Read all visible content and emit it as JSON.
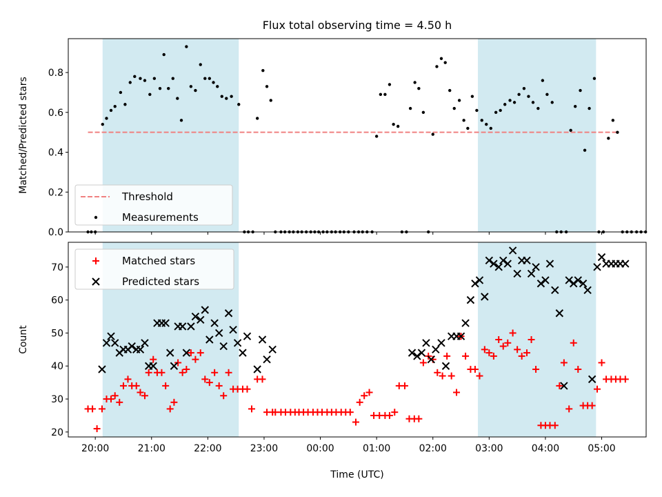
{
  "chart_data": [
    {
      "type": "scatter",
      "title": "Flux total observing time = 4.50 h",
      "ylabel": "Matched/Predicted stars",
      "xlabel": "",
      "ylim": [
        0,
        0.97
      ],
      "yticks": [
        0.0,
        0.2,
        0.4,
        0.6,
        0.8
      ],
      "ytick_labels": [
        "0.0",
        "0.2",
        "0.4",
        "0.6",
        "0.8"
      ],
      "xlim": [
        19.52,
        29.79
      ],
      "highlight_spans": [
        [
          20.13,
          22.55
        ],
        [
          26.8,
          28.9
        ]
      ],
      "highlight_color": "#add8e6",
      "legend": {
        "placement": "lower-left",
        "entries": [
          "Threshold",
          "Measurements"
        ]
      },
      "series": [
        {
          "name": "Threshold",
          "style": "dashed-line",
          "color": "#f08080",
          "x": [
            19.87,
            29.27
          ],
          "y": [
            0.5,
            0.5
          ]
        },
        {
          "name": "Measurements",
          "style": "dot",
          "color": "#000000",
          "x": [
            19.87,
            19.93,
            20.0,
            20.13,
            20.2,
            20.28,
            20.35,
            20.45,
            20.53,
            20.62,
            20.7,
            20.8,
            20.88,
            20.97,
            21.05,
            21.15,
            21.22,
            21.3,
            21.38,
            21.46,
            21.53,
            21.62,
            21.7,
            21.78,
            21.87,
            21.95,
            22.03,
            22.1,
            22.17,
            22.25,
            22.33,
            22.42,
            22.55,
            22.65,
            22.72,
            22.8,
            22.88,
            22.98,
            23.05,
            23.12,
            23.2,
            23.3,
            23.37,
            23.45,
            23.52,
            23.6,
            23.67,
            23.75,
            23.83,
            23.9,
            23.97,
            24.05,
            24.12,
            24.2,
            24.27,
            24.35,
            24.42,
            24.5,
            24.6,
            24.68,
            24.75,
            24.83,
            24.92,
            25.0,
            25.07,
            25.15,
            25.23,
            25.3,
            25.38,
            25.45,
            25.53,
            25.6,
            25.68,
            25.75,
            25.83,
            25.92,
            26.0,
            26.07,
            26.15,
            26.22,
            26.3,
            26.38,
            26.47,
            26.55,
            26.62,
            26.7,
            26.78,
            26.87,
            26.95,
            27.03,
            27.12,
            27.2,
            27.28,
            27.37,
            27.45,
            27.53,
            27.62,
            27.7,
            27.78,
            27.87,
            27.95,
            28.03,
            28.12,
            28.2,
            28.28,
            28.37,
            28.45,
            28.53,
            28.62,
            28.7,
            28.78,
            28.87,
            28.95,
            29.03,
            29.12,
            29.2,
            29.28,
            29.37,
            29.45,
            29.53,
            29.62,
            29.7,
            29.78
          ],
          "y": [
            0.0,
            0.0,
            0.0,
            0.54,
            0.57,
            0.61,
            0.63,
            0.7,
            0.64,
            0.75,
            0.78,
            0.77,
            0.76,
            0.69,
            0.77,
            0.72,
            0.89,
            0.72,
            0.77,
            0.67,
            0.56,
            0.93,
            0.73,
            0.71,
            0.84,
            0.77,
            0.77,
            0.75,
            0.73,
            0.68,
            0.67,
            0.68,
            0.64,
            0.0,
            0.0,
            0.0,
            0.57,
            0.81,
            0.73,
            0.66,
            0.0,
            0.0,
            0.0,
            0.0,
            0.0,
            0.0,
            0.0,
            0.0,
            0.0,
            0.0,
            0.0,
            0.0,
            0.0,
            0.0,
            0.0,
            0.0,
            0.0,
            0.0,
            0.0,
            0.0,
            0.0,
            0.0,
            0.0,
            0.48,
            0.69,
            0.69,
            0.74,
            0.54,
            0.53,
            0.0,
            0.0,
            0.62,
            0.75,
            0.72,
            0.6,
            0.0,
            0.49,
            0.83,
            0.87,
            0.85,
            0.71,
            0.62,
            0.66,
            0.56,
            0.52,
            0.68,
            0.61,
            0.56,
            0.54,
            0.52,
            0.6,
            0.61,
            0.64,
            0.66,
            0.65,
            0.69,
            0.72,
            0.68,
            0.65,
            0.62,
            0.76,
            0.69,
            0.65,
            0.0,
            0.0,
            0.0,
            0.51,
            0.63,
            0.71,
            0.41,
            0.62,
            0.77,
            0.0,
            0.0,
            0.47,
            0.56,
            0.5,
            0.0,
            0.0,
            0.0,
            0.0,
            0.0,
            0.0
          ]
        }
      ]
    },
    {
      "type": "scatter",
      "title": "",
      "ylabel": "Count",
      "xlabel": "Time (UTC)",
      "ylim": [
        18.5,
        77.5
      ],
      "yticks": [
        20,
        30,
        40,
        50,
        60,
        70
      ],
      "ytick_labels": [
        "20",
        "30",
        "40",
        "50",
        "60",
        "70"
      ],
      "xlim": [
        19.52,
        29.79
      ],
      "xticks": [
        20,
        21,
        22,
        23,
        24,
        25,
        26,
        27,
        28,
        29
      ],
      "xtick_labels": [
        "20:00",
        "21:00",
        "22:00",
        "23:00",
        "00:00",
        "01:00",
        "02:00",
        "03:00",
        "04:00",
        "05:00"
      ],
      "highlight_spans": [
        [
          20.13,
          22.55
        ],
        [
          26.8,
          28.9
        ]
      ],
      "highlight_color": "#add8e6",
      "legend": {
        "placement": "top-left",
        "entries": [
          "Matched stars",
          "Predicted stars"
        ]
      },
      "series": [
        {
          "name": "Matched stars",
          "style": "plus",
          "color": "#ff0000",
          "x": [
            19.87,
            19.95,
            20.03,
            20.12,
            20.2,
            20.28,
            20.35,
            20.43,
            20.5,
            20.58,
            20.65,
            20.73,
            20.8,
            20.88,
            20.95,
            21.03,
            21.1,
            21.18,
            21.25,
            21.33,
            21.4,
            21.47,
            21.55,
            21.62,
            21.7,
            21.78,
            21.87,
            21.95,
            22.03,
            22.12,
            22.2,
            22.28,
            22.37,
            22.45,
            22.53,
            22.62,
            22.7,
            22.78,
            22.88,
            22.97,
            23.05,
            23.15,
            23.2,
            23.3,
            23.38,
            23.47,
            23.55,
            23.62,
            23.7,
            23.78,
            23.87,
            23.95,
            24.03,
            24.12,
            24.2,
            24.28,
            24.37,
            24.45,
            24.53,
            24.63,
            24.7,
            24.78,
            24.87,
            24.95,
            25.05,
            25.15,
            25.23,
            25.32,
            25.4,
            25.5,
            25.58,
            25.67,
            25.75,
            25.83,
            25.92,
            26.0,
            26.08,
            26.17,
            26.25,
            26.33,
            26.42,
            26.5,
            26.58,
            26.67,
            26.75,
            26.83,
            26.92,
            27.0,
            27.08,
            27.17,
            27.25,
            27.33,
            27.42,
            27.5,
            27.58,
            27.67,
            27.75,
            27.83,
            27.92,
            28.0,
            28.08,
            28.17,
            28.25,
            28.33,
            28.42,
            28.5,
            28.58,
            28.67,
            28.75,
            28.83,
            28.92,
            29.0,
            29.08,
            29.17,
            29.25,
            29.33,
            29.42
          ],
          "y": [
            27,
            27,
            21,
            27,
            30,
            30,
            31,
            29,
            34,
            36,
            34,
            34,
            32,
            31,
            38,
            42,
            38,
            38,
            34,
            27,
            29,
            41,
            38,
            39,
            44,
            42,
            44,
            36,
            35,
            38,
            34,
            31,
            38,
            33,
            33,
            33,
            33,
            27,
            36,
            36,
            26,
            26,
            26,
            26,
            26,
            26,
            26,
            26,
            26,
            26,
            26,
            26,
            26,
            26,
            26,
            26,
            26,
            26,
            26,
            23,
            29,
            31,
            32,
            25,
            25,
            25,
            25,
            26,
            34,
            34,
            24,
            24,
            24,
            41,
            43,
            42,
            38,
            37,
            43,
            37,
            32,
            49,
            43,
            39,
            39,
            37,
            45,
            44,
            43,
            48,
            46,
            47,
            50,
            45,
            43,
            44,
            48,
            39,
            22,
            22,
            22,
            22,
            34,
            41,
            27,
            47,
            39,
            28,
            28,
            28,
            33,
            41,
            36,
            36,
            36,
            36,
            36
          ]
        },
        {
          "name": "Predicted stars",
          "style": "x",
          "color": "#000000",
          "x": [
            20.12,
            20.2,
            20.28,
            20.35,
            20.43,
            20.5,
            20.58,
            20.65,
            20.73,
            20.8,
            20.88,
            20.95,
            21.03,
            21.1,
            21.18,
            21.25,
            21.33,
            21.4,
            21.47,
            21.55,
            21.62,
            21.7,
            21.78,
            21.87,
            21.95,
            22.03,
            22.12,
            22.2,
            22.28,
            22.37,
            22.45,
            22.53,
            22.62,
            22.7,
            22.88,
            22.97,
            23.05,
            23.15,
            25.63,
            25.72,
            25.8,
            25.88,
            25.97,
            26.05,
            26.15,
            26.23,
            26.33,
            26.42,
            26.5,
            26.58,
            26.67,
            26.75,
            26.83,
            26.92,
            27.0,
            27.08,
            27.17,
            27.25,
            27.33,
            27.42,
            27.5,
            27.58,
            27.67,
            27.75,
            27.83,
            27.92,
            28.0,
            28.08,
            28.17,
            28.25,
            28.33,
            28.42,
            28.5,
            28.58,
            28.67,
            28.75,
            28.83,
            28.92,
            29.0,
            29.08,
            29.17,
            29.25,
            29.33,
            29.42
          ],
          "y": [
            39,
            47,
            49,
            47,
            44,
            45,
            45,
            46,
            45,
            45,
            47,
            40,
            40,
            53,
            53,
            53,
            44,
            40,
            52,
            52,
            44,
            52,
            55,
            54,
            57,
            48,
            53,
            50,
            46,
            56,
            51,
            47,
            44,
            49,
            39,
            48,
            42,
            45,
            44,
            43,
            44,
            47,
            42,
            45,
            47,
            40,
            49,
            49,
            49,
            53,
            60,
            65,
            66,
            61,
            72,
            71,
            70,
            72,
            71,
            75,
            68,
            72,
            72,
            68,
            70,
            65,
            66,
            71,
            63,
            56,
            34,
            66,
            65,
            66,
            65,
            63,
            36,
            70,
            73,
            71,
            71,
            71,
            71,
            71
          ]
        }
      ]
    }
  ]
}
